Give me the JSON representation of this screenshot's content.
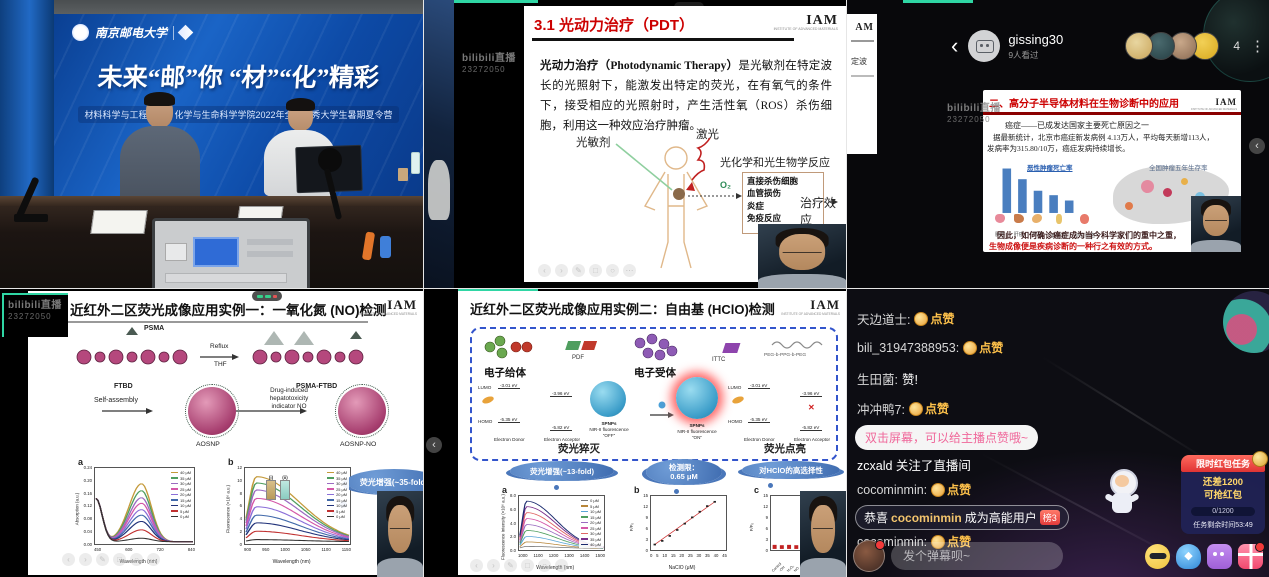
{
  "watermark": {
    "logo": "bilibili直播",
    "id": "23272050"
  },
  "iam": {
    "text": "IAM",
    "caption": "INSTITUTE OF ADVANCED MATERIALS"
  },
  "icons": {
    "back": "‹",
    "kebab": "⋮",
    "collapse": "‹",
    "prev": "‹",
    "next": "›",
    "pen": "✎",
    "frame": "□",
    "zoom": "○",
    "more": "⋯",
    "cross": "✕",
    "up": "▲"
  },
  "stage": {
    "university": "南京邮电大学",
    "title": "未来“邮”你 “材”“化”精彩",
    "subtitle": "材料科学与工程学院、化学与生命科学学院2022年全国优秀大学生暑期夏令营"
  },
  "pdt": {
    "title": "3.1 光动力治疗（PDT）",
    "body_bold": "光动力治疗（Photodynamic Therapy）",
    "body": "是光敏剂在特定波长的光照射下，能激发出特定的荧光，在有氧气的条件下，接受相应的光照射时，产生活性氧（ROS）杀伤细胞，利用这一种效应治疗肿瘤。",
    "label_ps": "光敏剂",
    "label_laser": "激光",
    "label_reaction": "光化学和光生物学反应",
    "o2": "O₂",
    "effects": [
      "直接杀伤细胞",
      "血管损伤",
      "炎症",
      "免疫反应"
    ],
    "outcome": "治疗效应"
  },
  "phone": {
    "username": "gissing30",
    "viewers": "9人看过",
    "count": "4",
    "sliver_logo": "AM",
    "sliver_text": "定波",
    "slide": {
      "title": "二、高分子半导体材料在生物诊断中的应用",
      "line1": "癌症——已成发达国家主要死亡原因之一",
      "line2": "据最新统计，北京市癌症新发病例 4.13万人，平均每天新增113人，",
      "line3": "发病率为315.80/10万，癌症发病持续增长。",
      "bars_label": "恶性肿瘤死亡率",
      "map_label": "全国肿瘤五年生存率",
      "organs": [
        "肺癌",
        "肝癌",
        "胃癌",
        "食管癌",
        "结直肠癌"
      ],
      "foot1": "因此，如何确诊癌症成为当今科学家们的重中之重，",
      "foot2": "生物成像便是疾病诊断的一种行之有效的方式。"
    }
  },
  "slide_no": {
    "title": "近红外二区荧光成像应用实例一：一氧化氮 (NO)检测",
    "psma": "PSMA",
    "ftbd": "FTBD",
    "reflux": "Reflux",
    "thf": "THF",
    "product": "PSMA-FTBD",
    "self_assembly": "Self-assembly",
    "drug1": "Drug-induced",
    "drug2": "hepatotoxicity",
    "drug3": "indicator NO",
    "np1": "AOSNP",
    "np2": "AOSNP-NO",
    "cuv1": "(i)",
    "cuv2": "(ii)",
    "bubble": "荧光增强(~35-fold)"
  },
  "slide_hclo": {
    "title": "近红外二区荧光成像应用实例二：自由基 (HClO)检测",
    "donor": "电子给体",
    "acceptor": "电子受体",
    "pdf": "PDF",
    "ittc": "ITTC",
    "peg": "PEG-b-PPG-b-PEG",
    "lumo": "LUMO",
    "homo": "HOMO",
    "e_lumo_d": "-3.01 eV",
    "e_lumo_a": "-3.96 eV",
    "e_homo_d": "-5.35 eV",
    "e_homo_a": "-5.82 eV",
    "ed": "Electron Donor",
    "ea": "Electron Acceptor",
    "s1": "SPNPs",
    "s1sub": "NIR-II fluorescence “OFF”",
    "s2": "SPNPs",
    "s2sub": "NIR-II fluorescence “ON”",
    "quench": "荧光猝灭",
    "turnon": "荧光点亮",
    "bub_a": "荧光增强(~13-fold)",
    "bub_b1": "检测限：",
    "bub_b2": "0.65 μM",
    "bub_c": "对HClO的高选择性"
  },
  "chat": {
    "messages": [
      {
        "u": "天边道士:",
        "like": true
      },
      {
        "u": "bili_31947388953:",
        "like": true
      },
      {
        "u": "生田菌:",
        "t": "赞!"
      },
      {
        "u": "冲冲鸭7:",
        "like": true
      },
      {
        "u": "cocominmin:",
        "like": true
      },
      {
        "u": "cocominmin:",
        "like": true
      }
    ],
    "like_label": "点赞",
    "hint": "双击屏幕，可以给主播点赞哦~",
    "follow": "zcxald 关注了直播间",
    "congrats_pre": "恭喜",
    "congrats_name": "cocominmin",
    "congrats_suf": "成为高能用户",
    "rank": "榜3",
    "rp_header": "限时红包任务",
    "rp1": "还差1200",
    "rp2": "可抢红包",
    "rp_progress": "0/1200",
    "rp_timer": "任务剩余时间53:49",
    "placeholder": "发个弹幕呗~"
  },
  "chart_data": [
    {
      "id": "no_absorption",
      "type": "spectra",
      "panel": "a",
      "ylabel": "Absorption (a.u.)",
      "xlabel": "Wavelength (nm)",
      "yticks": [
        "0.00",
        "0.04",
        "0.08",
        "0.12",
        "0.16",
        "0.20",
        "0.24"
      ],
      "xticks": [
        "450",
        "600",
        "720",
        "840"
      ],
      "legend": [
        "40 μM",
        "35 μM",
        "30 μM",
        "25 μM",
        "20 μM",
        "15 μM",
        "10 μM",
        "5 μM",
        "0 μM"
      ],
      "colors": [
        "#c49a3a",
        "#4f9e5f",
        "#9a6bc0",
        "#d457a8",
        "#8b6fd8",
        "#4169aa",
        "#22337a",
        "#c03030",
        "#333333"
      ],
      "peaks": [
        0.83,
        0.73,
        0.63,
        0.55,
        0.46,
        0.38,
        0.29,
        0.17,
        0.05
      ],
      "px": 0.47,
      "sl": 0.13,
      "sr": 0.1,
      "left_rise": true
    },
    {
      "id": "no_fluorescence",
      "type": "spectra",
      "panel": "b",
      "ylabel": "Fluorescence (×10⁶ a.u.)",
      "xlabel": "Wavelength (nm)",
      "yticks": [
        "0",
        "2",
        "4",
        "6",
        "8",
        "10",
        "12"
      ],
      "xticks": [
        "900",
        "950",
        "1000",
        "1050",
        "1100",
        "1150"
      ],
      "legend": [
        "40 μM",
        "35 μM",
        "30 μM",
        "25 μM",
        "20 μM",
        "15 μM",
        "10 μM",
        "5 μM",
        "0 μM"
      ],
      "colors": [
        "#c49a3a",
        "#4f9e5f",
        "#9a6bc0",
        "#d457a8",
        "#8b6fd8",
        "#4169aa",
        "#22337a",
        "#c03030",
        "#333333"
      ],
      "peaks": [
        0.93,
        0.84,
        0.74,
        0.62,
        0.5,
        0.38,
        0.27,
        0.15,
        0.03
      ],
      "px": 0.1,
      "sl": 0.07,
      "sr": 0.42
    },
    {
      "id": "hclo_spectra",
      "type": "spectra",
      "panel": "a",
      "ylabel": "Fluorescence Intensity (×10⁶ a.u.)",
      "xlabel": "Wavelength (nm)",
      "yticks": [
        "0.0",
        "2.0",
        "4.0",
        "6.0",
        "8.0"
      ],
      "xticks": [
        "1000",
        "1100",
        "1200",
        "1300",
        "1400",
        "1500"
      ],
      "legend": [
        "0 μM",
        "5 μM",
        "10 μM",
        "15 μM",
        "20 μM",
        "25 μM",
        "30 μM",
        "35 μM",
        "40 μM"
      ],
      "colors": [
        "#777777",
        "#b8863a",
        "#5aa5d6",
        "#4f9e5f",
        "#9a6bc0",
        "#d457a8",
        "#e06666",
        "#7a2f8b",
        "#1a2a6e"
      ],
      "peaks": [
        0.04,
        0.13,
        0.24,
        0.36,
        0.48,
        0.6,
        0.72,
        0.84,
        0.95
      ],
      "px": 0.08,
      "sl": 0.05,
      "sr": 0.35
    },
    {
      "id": "hclo_linear",
      "type": "scatter",
      "panel": "b",
      "ylabel": "F/F₀",
      "xlabel": "NaClO (μM)",
      "yticks": [
        "0",
        "3",
        "6",
        "9",
        "12",
        "15"
      ],
      "xticks": [
        "0",
        "5",
        "10",
        "15",
        "20",
        "25",
        "30",
        "35",
        "40",
        "45"
      ],
      "x": [
        0,
        5,
        10,
        15,
        20,
        25,
        30,
        35,
        40
      ],
      "y": [
        1.0,
        2.1,
        3.6,
        5.4,
        7.3,
        9.2,
        10.9,
        12.6,
        13.9
      ],
      "xmax": 45,
      "ymax": 15
    },
    {
      "id": "hclo_selectivity",
      "type": "bar",
      "panel": "c",
      "ylabel": "F/F₀",
      "yticks": [
        "0",
        "3",
        "6",
        "9",
        "12",
        "15"
      ],
      "categories": [
        "Control",
        "·OH",
        "H₂O₂",
        "NO",
        "MeOO·",
        "O₂·⁻",
        "ONOO⁻",
        "GSH",
        "ClO⁻"
      ],
      "values": [
        1.2,
        1.1,
        1.2,
        1.1,
        1.2,
        1.1,
        1.1,
        1.3,
        14.0
      ],
      "ymax": 15,
      "color": "#c22222"
    },
    {
      "id": "cancer_bars",
      "type": "bar",
      "bare": true,
      "values": [
        100,
        76,
        50,
        40,
        28
      ],
      "ymax": 110,
      "color": "#4a7ebf",
      "categories": []
    }
  ]
}
